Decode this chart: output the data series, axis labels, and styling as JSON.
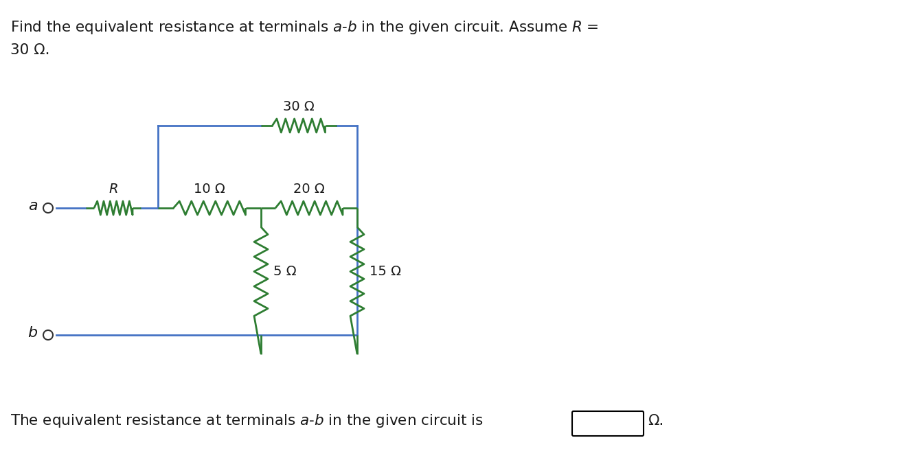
{
  "wire_color": "#4472C4",
  "resistor_color": "#2E7D32",
  "terminal_color": "#333333",
  "bg_color": "#FFFFFF",
  "text_color": "#1a1a1a",
  "title_line1": "Find the equivalent resistance at terminals $a$-$b$ in the given circuit. Assume $R$ =",
  "title_line2": "30 Ω.",
  "bottom_text": "The equivalent resistance at terminals $a$-$b$ in the given circuit is",
  "bottom_omega": "Ω.",
  "label_R": "$R$",
  "label_10": "10 Ω",
  "label_20": "20 Ω",
  "label_30": "30 Ω",
  "label_5": "5 Ω",
  "label_15": "15 Ω",
  "label_a": "$a$",
  "label_b": "$b$"
}
